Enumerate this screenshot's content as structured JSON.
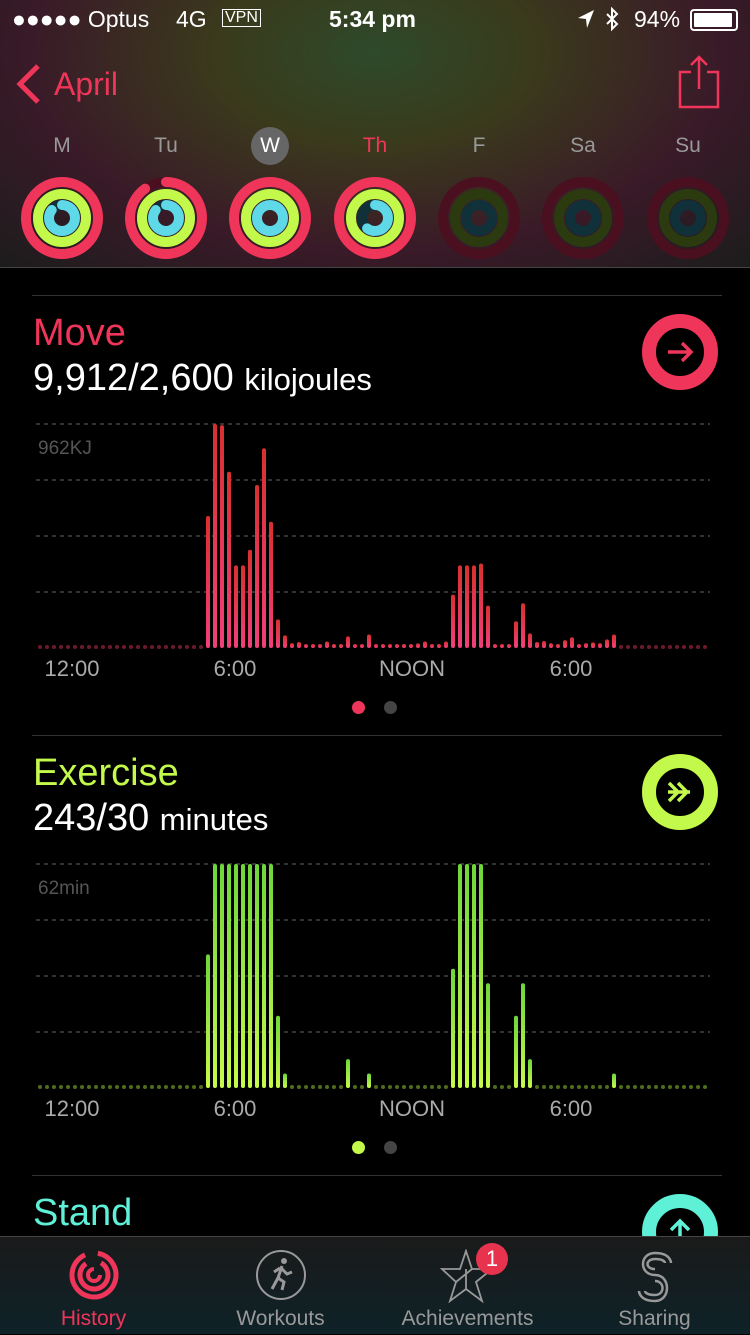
{
  "status_bar": {
    "carrier": "●●●●● Optus",
    "network": "4G",
    "vpn": "VPN",
    "time": "5:34 pm",
    "battery": "94%",
    "battery_level": 0.94
  },
  "nav": {
    "back_label": "April",
    "share_icon": "share-icon"
  },
  "week": {
    "days": [
      {
        "label": "M",
        "move": 1.0,
        "exercise": 1.0,
        "stand": 0.85,
        "state": "past"
      },
      {
        "label": "Tu",
        "move": 0.9,
        "exercise": 1.0,
        "stand": 0.85,
        "state": "past"
      },
      {
        "label": "W",
        "move": 1.0,
        "exercise": 1.0,
        "stand": 1.0,
        "state": "selected"
      },
      {
        "label": "Th",
        "move": 1.0,
        "exercise": 1.0,
        "stand": 0.6,
        "state": "today"
      },
      {
        "label": "F",
        "move": 0,
        "exercise": 0,
        "stand": 0,
        "state": "future"
      },
      {
        "label": "Sa",
        "move": 0,
        "exercise": 0,
        "stand": 0,
        "state": "future"
      },
      {
        "label": "Su",
        "move": 0,
        "exercise": 0,
        "stand": 0,
        "state": "future"
      }
    ]
  },
  "colors": {
    "move": "#f0355a",
    "exercise": "#c3f94a",
    "stand": "#5ff0d8",
    "accent": "#f0355a"
  },
  "move": {
    "title": "Move",
    "value": "9,912/2,600",
    "unit": "kilojoules"
  },
  "exercise": {
    "title": "Exercise",
    "value": "243/30",
    "unit": "minutes"
  },
  "stand": {
    "title": "Stand"
  },
  "chart_data": [
    {
      "type": "bar",
      "title": "",
      "ymax_label": "962KJ",
      "ylim": [
        0,
        962
      ],
      "x_tick_labels": [
        "12:00",
        "6:00",
        "NOON",
        "6:00"
      ],
      "interval": "15 min",
      "values": [
        0,
        0,
        0,
        0,
        0,
        0,
        0,
        0,
        0,
        0,
        0,
        0,
        0,
        0,
        0,
        0,
        0,
        0,
        0,
        0,
        0,
        0,
        0,
        0,
        567,
        962,
        957,
        757,
        355,
        355,
        422,
        700,
        858,
        542,
        123,
        54,
        21,
        26,
        11,
        11,
        17,
        28,
        17,
        13,
        50,
        10,
        13,
        58,
        11,
        9,
        11,
        9,
        9,
        9,
        20,
        28,
        17,
        17,
        28,
        229,
        355,
        355,
        355,
        363,
        182,
        11,
        13,
        13,
        115,
        192,
        63,
        26,
        30,
        21,
        17,
        34,
        46,
        17,
        21,
        24,
        21,
        37,
        58,
        0,
        0,
        0,
        0,
        0,
        0,
        0,
        0,
        0,
        0,
        0,
        0,
        0
      ]
    },
    {
      "type": "bar",
      "title": "",
      "ymax_label": "62min",
      "ylim": [
        0,
        62
      ],
      "x_tick_labels": [
        "12:00",
        "6:00",
        "NOON",
        "6:00"
      ],
      "interval": "15 min",
      "values": [
        0,
        0,
        0,
        0,
        0,
        0,
        0,
        0,
        0,
        0,
        0,
        0,
        0,
        0,
        0,
        0,
        0,
        0,
        0,
        0,
        0,
        0,
        0,
        0,
        37,
        62,
        62,
        62,
        62,
        62,
        62,
        62,
        62,
        62,
        20,
        4,
        0,
        0,
        0,
        0,
        0,
        0,
        0,
        0,
        8,
        0,
        0,
        4,
        0,
        0,
        0,
        0,
        0,
        0,
        0,
        0,
        0,
        0,
        0,
        33,
        62,
        62,
        62,
        62,
        29,
        0,
        0,
        0,
        20,
        29,
        8,
        0,
        0,
        0,
        0,
        0,
        0,
        0,
        0,
        0,
        0,
        0,
        4,
        0,
        0,
        0,
        0,
        0,
        0,
        0,
        0,
        0,
        0,
        0,
        0,
        0
      ]
    }
  ],
  "tabs": [
    {
      "label": "History",
      "active": true
    },
    {
      "label": "Workouts"
    },
    {
      "label": "Achievements",
      "badge": "1"
    },
    {
      "label": "Sharing"
    }
  ]
}
